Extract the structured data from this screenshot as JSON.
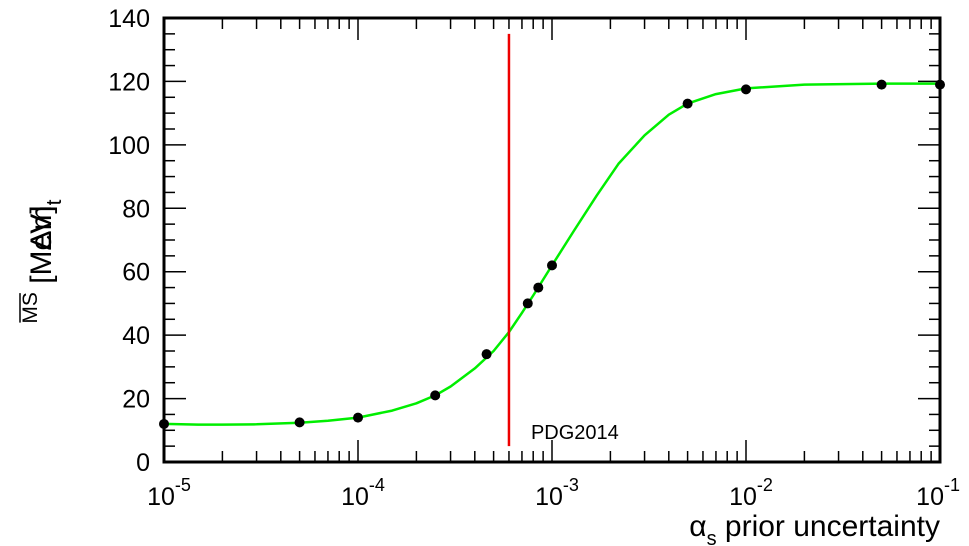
{
  "chart_data": {
    "type": "scatter",
    "title": "",
    "xlabel": {
      "main": "α",
      "sub": "s",
      "rest": " prior uncertainty"
    },
    "ylabel": {
      "prefix": "Δm",
      "sub": "t",
      "sup": "MS",
      "suffix": " [MeV]"
    },
    "x_scale": "log",
    "xlim": [
      1e-05,
      0.1
    ],
    "ylim": [
      0,
      140
    ],
    "x_ticks": [
      {
        "value": 1e-05,
        "base": "10",
        "exp": "-5"
      },
      {
        "value": 0.0001,
        "base": "10",
        "exp": "-4"
      },
      {
        "value": 0.001,
        "base": "10",
        "exp": "-3"
      },
      {
        "value": 0.01,
        "base": "10",
        "exp": "-2"
      },
      {
        "value": 0.1,
        "base": "10",
        "exp": "-1"
      }
    ],
    "y_ticks": [
      0,
      20,
      40,
      60,
      80,
      100,
      120,
      140
    ],
    "series": [
      {
        "type": "scatter",
        "color": "#000000",
        "points": [
          {
            "x": 1e-05,
            "y": 12
          },
          {
            "x": 5e-05,
            "y": 12.5
          },
          {
            "x": 0.0001,
            "y": 14
          },
          {
            "x": 0.00025,
            "y": 21
          },
          {
            "x": 0.00046,
            "y": 34
          },
          {
            "x": 0.00075,
            "y": 50
          },
          {
            "x": 0.00085,
            "y": 55
          },
          {
            "x": 0.001,
            "y": 62
          },
          {
            "x": 0.005,
            "y": 113
          },
          {
            "x": 0.01,
            "y": 117.5
          },
          {
            "x": 0.05,
            "y": 119
          },
          {
            "x": 0.1,
            "y": 119
          }
        ]
      },
      {
        "type": "line",
        "color": "#00ee00",
        "points": [
          {
            "x": 1e-05,
            "y": 12
          },
          {
            "x": 1.5e-05,
            "y": 11.8
          },
          {
            "x": 2e-05,
            "y": 11.8
          },
          {
            "x": 3e-05,
            "y": 11.9
          },
          {
            "x": 5e-05,
            "y": 12.4
          },
          {
            "x": 7e-05,
            "y": 13
          },
          {
            "x": 0.0001,
            "y": 14
          },
          {
            "x": 0.00015,
            "y": 16.2
          },
          {
            "x": 0.0002,
            "y": 18.5
          },
          {
            "x": 0.00025,
            "y": 21
          },
          {
            "x": 0.0003,
            "y": 23.8
          },
          {
            "x": 0.0004,
            "y": 29.5
          },
          {
            "x": 0.0005,
            "y": 35
          },
          {
            "x": 0.0006,
            "y": 41
          },
          {
            "x": 0.0007,
            "y": 47
          },
          {
            "x": 0.0008,
            "y": 52.5
          },
          {
            "x": 0.001,
            "y": 62
          },
          {
            "x": 0.0013,
            "y": 73
          },
          {
            "x": 0.0017,
            "y": 84
          },
          {
            "x": 0.0022,
            "y": 94
          },
          {
            "x": 0.003,
            "y": 103
          },
          {
            "x": 0.004,
            "y": 109.5
          },
          {
            "x": 0.005,
            "y": 113
          },
          {
            "x": 0.007,
            "y": 116
          },
          {
            "x": 0.01,
            "y": 117.8
          },
          {
            "x": 0.02,
            "y": 119
          },
          {
            "x": 0.05,
            "y": 119.3
          },
          {
            "x": 0.1,
            "y": 119.3
          }
        ]
      }
    ],
    "vline": {
      "x": 0.0006,
      "y_from": 5,
      "y_to": 135,
      "color": "#ee0000",
      "label": "PDG2014"
    },
    "grid": false,
    "legend": "none"
  }
}
